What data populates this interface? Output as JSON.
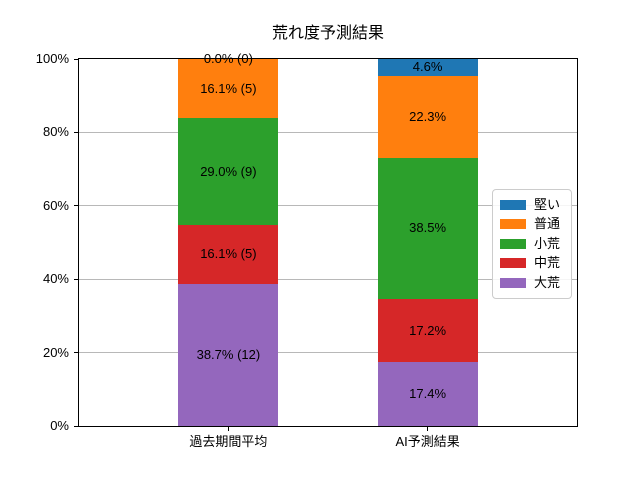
{
  "title": "荒れ度予測結果",
  "chart_data": {
    "type": "bar",
    "stacked": true,
    "orientation": "vertical",
    "categories": [
      "過去期間平均",
      "AI予測結果"
    ],
    "series": [
      {
        "name": "大荒",
        "color": "#9467bd",
        "values": [
          38.7,
          17.4
        ],
        "bar_labels": [
          "38.7% (12)",
          "17.4%"
        ]
      },
      {
        "name": "中荒",
        "color": "#d62728",
        "values": [
          16.1,
          17.2
        ],
        "bar_labels": [
          "16.1% (5)",
          "17.2%"
        ]
      },
      {
        "name": "小荒",
        "color": "#2ca02c",
        "values": [
          29.0,
          38.5
        ],
        "bar_labels": [
          "29.0% (9)",
          "38.5%"
        ]
      },
      {
        "name": "普通",
        "color": "#ff7f0e",
        "values": [
          16.1,
          22.3
        ],
        "bar_labels": [
          "16.1% (5)",
          "22.3%"
        ]
      },
      {
        "name": "堅い",
        "color": "#1f77b4",
        "values": [
          0.0,
          4.6
        ],
        "bar_labels": [
          "0.0% (0)",
          "4.6%"
        ]
      }
    ],
    "y_ticks": [
      0,
      20,
      40,
      60,
      80,
      100
    ],
    "y_tick_labels": [
      "0%",
      "20%",
      "40%",
      "60%",
      "80%",
      "100%"
    ],
    "ylim": [
      0,
      100
    ],
    "grid": true,
    "legend": {
      "position": "center right",
      "items_top_to_bottom": [
        "堅い",
        "普通",
        "小荒",
        "中荒",
        "大荒"
      ]
    }
  },
  "colors": {
    "grid": "#b8b8b8",
    "spine": "#000000",
    "text": "#000000",
    "background": "#ffffff"
  }
}
